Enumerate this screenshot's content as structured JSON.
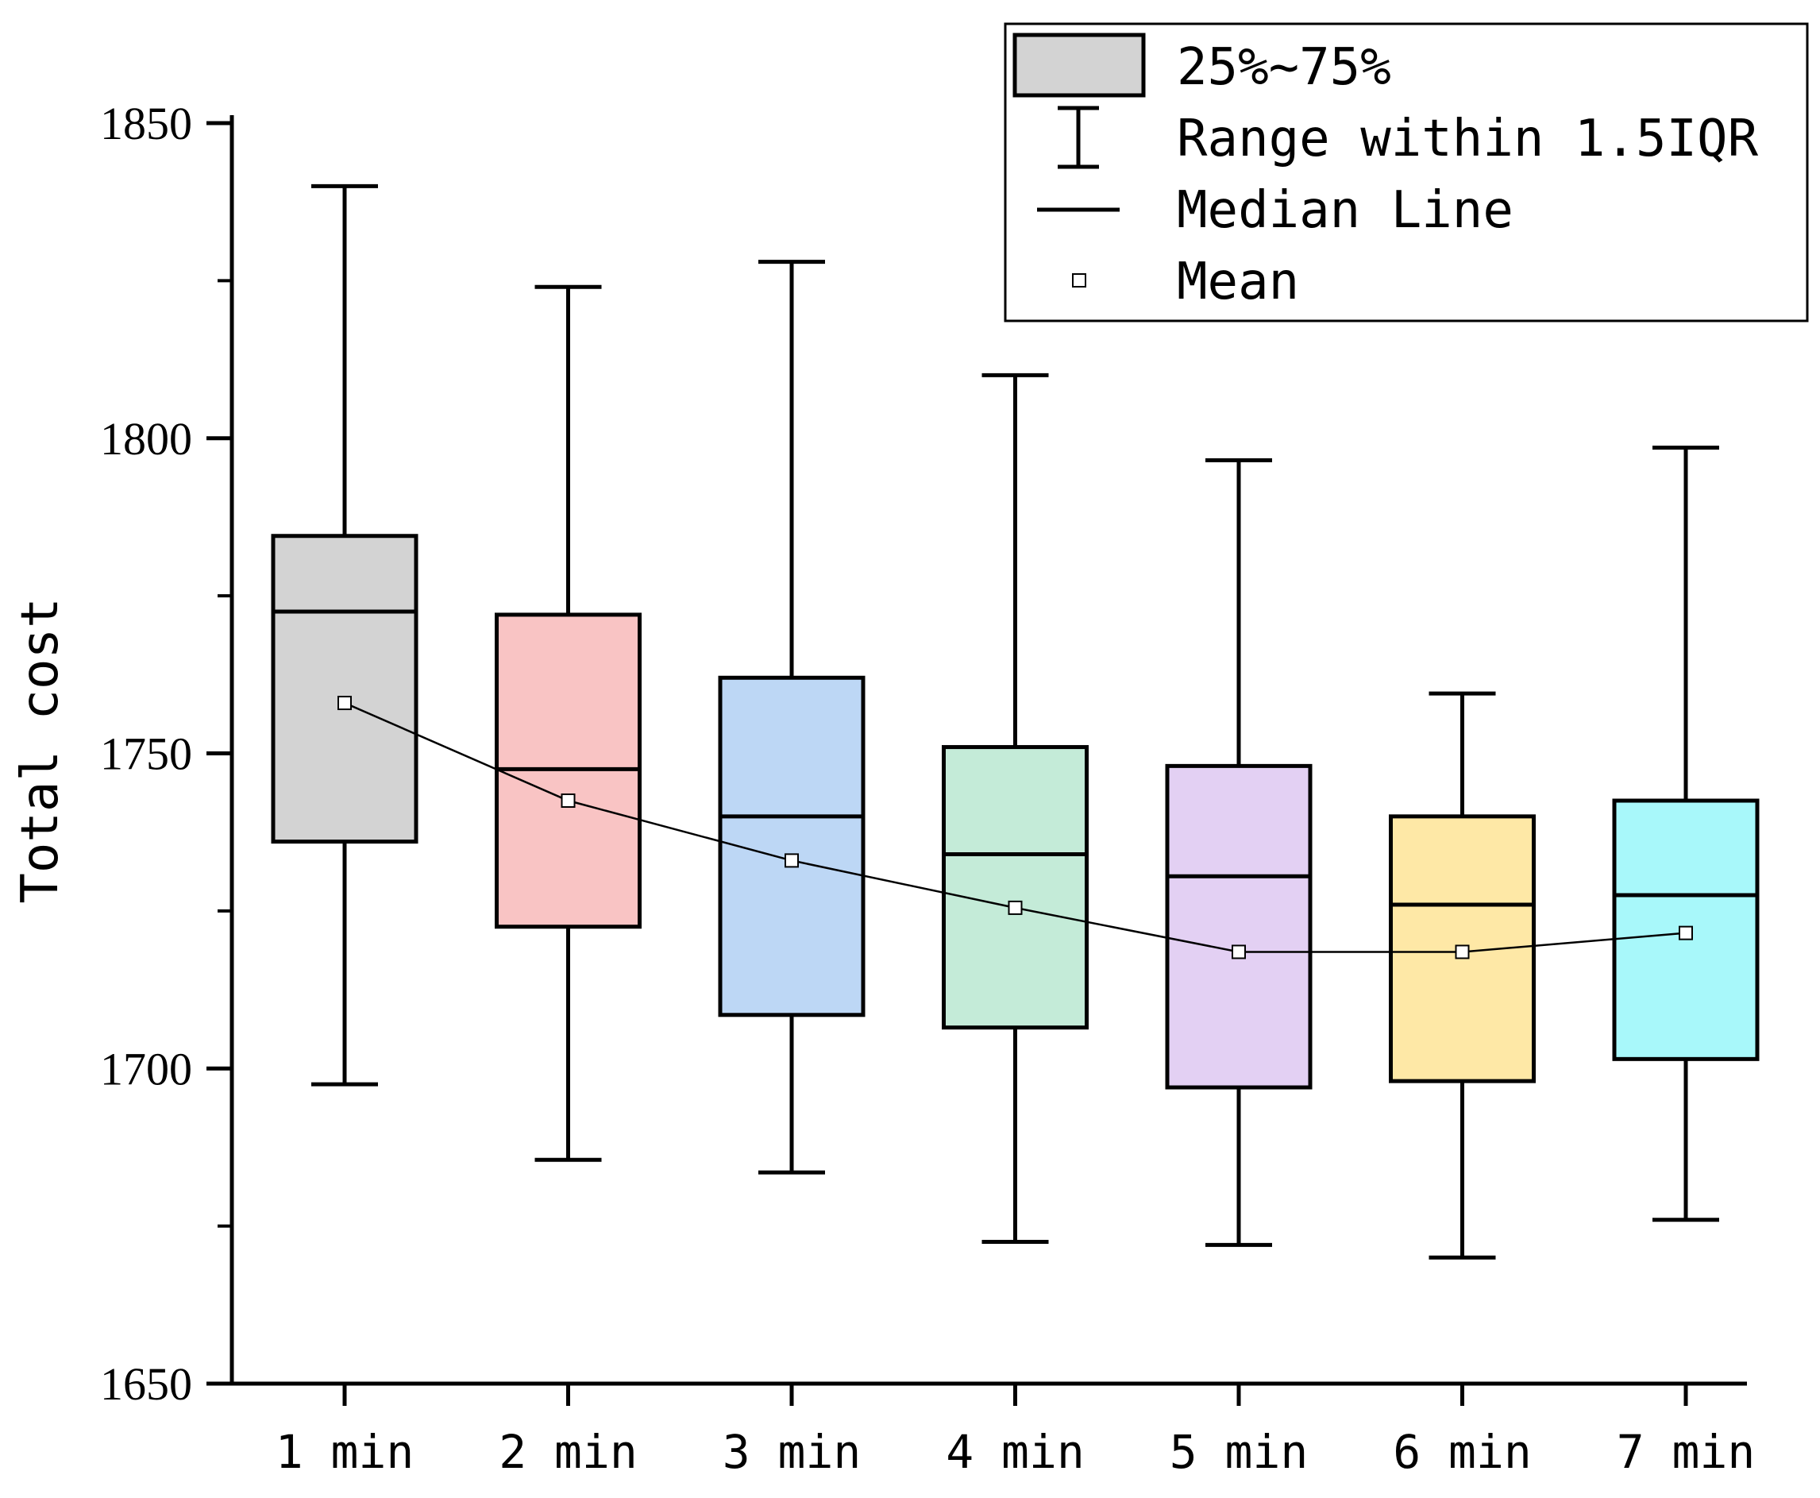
{
  "chart_data": {
    "type": "box",
    "title": "",
    "xlabel": "",
    "ylabel": "Total cost",
    "ylim": [
      1650,
      1850
    ],
    "yticks": [
      1650,
      1700,
      1750,
      1800,
      1850
    ],
    "categories": [
      "1 min",
      "2 min",
      "3 min",
      "4 min",
      "5 min",
      "6 min",
      "7 min"
    ],
    "boxes": [
      {
        "category": "1 min",
        "whisker_low": 1697.5,
        "q1": 1736,
        "median": 1772.5,
        "q3": 1784.5,
        "whisker_high": 1840,
        "mean": 1758,
        "color": "#d3d3d3"
      },
      {
        "category": "2 min",
        "whisker_low": 1685.5,
        "q1": 1722.5,
        "median": 1747.5,
        "q3": 1772,
        "whisker_high": 1824,
        "mean": 1742.5,
        "color": "#f9c4c4"
      },
      {
        "category": "3 min",
        "whisker_low": 1683.5,
        "q1": 1708.5,
        "median": 1740,
        "q3": 1762,
        "whisker_high": 1828,
        "mean": 1733,
        "color": "#bdd7f5"
      },
      {
        "category": "4 min",
        "whisker_low": 1672.5,
        "q1": 1706.5,
        "median": 1734,
        "q3": 1751,
        "whisker_high": 1810,
        "mean": 1725.5,
        "color": "#c4ebd8"
      },
      {
        "category": "5 min",
        "whisker_low": 1672,
        "q1": 1697,
        "median": 1730.5,
        "q3": 1748,
        "whisker_high": 1796.5,
        "mean": 1718.5,
        "color": "#e3d0f3"
      },
      {
        "category": "6 min",
        "whisker_low": 1670,
        "q1": 1698,
        "median": 1726,
        "q3": 1740,
        "whisker_high": 1759.5,
        "mean": 1718.5,
        "color": "#fee8a6"
      },
      {
        "category": "7 min",
        "whisker_low": 1676,
        "q1": 1701.5,
        "median": 1727.5,
        "q3": 1742.5,
        "whisker_high": 1798.5,
        "mean": 1721.5,
        "color": "#a8f8fa"
      }
    ],
    "mean_line": true,
    "legend": {
      "position": "top-right",
      "entries": [
        {
          "label": "25%~75%",
          "kind": "box"
        },
        {
          "label": "Range within 1.5IQR",
          "kind": "whisker"
        },
        {
          "label": "Median Line",
          "kind": "line"
        },
        {
          "label": "Mean",
          "kind": "marker"
        }
      ]
    }
  }
}
